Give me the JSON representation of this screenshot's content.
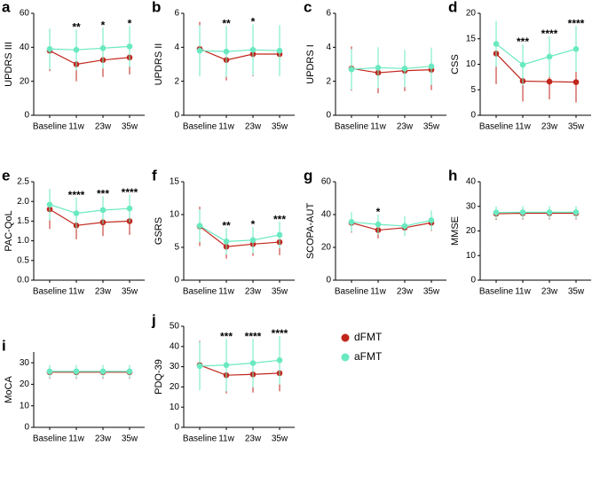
{
  "chart_data": [
    {
      "type": "line",
      "panel": "a",
      "ylabel": "UPDRS III",
      "categories": [
        "Baseline",
        "11w",
        "23w",
        "35w"
      ],
      "ylim": [
        0,
        60
      ],
      "yticks": [
        0,
        20,
        40,
        60
      ],
      "series": [
        {
          "color": "#c1261d",
          "values": [
            38,
            30,
            32.5,
            34
          ],
          "errors": [
            12,
            10,
            10,
            10
          ]
        },
        {
          "color": "#6ae9c1",
          "values": [
            39,
            38.5,
            39.5,
            40.5
          ],
          "errors": [
            12,
            12,
            12,
            12
          ]
        }
      ],
      "annotations": [
        null,
        "**",
        "*",
        "*"
      ]
    },
    {
      "type": "line",
      "panel": "b",
      "ylabel": "UPDRS II",
      "categories": [
        "Baseline",
        "11w",
        "23w",
        "35w"
      ],
      "ylim": [
        0,
        6
      ],
      "yticks": [
        0,
        2,
        4,
        6
      ],
      "series": [
        {
          "color": "#c1261d",
          "values": [
            3.9,
            3.25,
            3.6,
            3.6
          ],
          "errors": [
            1.6,
            1.2,
            1.3,
            1.3
          ]
        },
        {
          "color": "#6ae9c1",
          "values": [
            3.8,
            3.75,
            3.85,
            3.8
          ],
          "errors": [
            1.5,
            1.5,
            1.5,
            1.5
          ]
        }
      ],
      "annotations": [
        null,
        "**",
        "*",
        null
      ]
    },
    {
      "type": "line",
      "panel": "c",
      "ylabel": "UPDRS I",
      "categories": [
        "Baseline",
        "11w",
        "23w",
        "35w"
      ],
      "ylim": [
        0,
        6
      ],
      "yticks": [
        0,
        2,
        4,
        6
      ],
      "series": [
        {
          "color": "#c1261d",
          "values": [
            2.75,
            2.5,
            2.62,
            2.68
          ],
          "errors": [
            1.3,
            1.2,
            1.2,
            1.2
          ]
        },
        {
          "color": "#6ae9c1",
          "values": [
            2.7,
            2.8,
            2.75,
            2.88
          ],
          "errors": [
            1.2,
            1.2,
            1.1,
            1.1
          ]
        }
      ],
      "annotations": [
        null,
        null,
        null,
        null
      ]
    },
    {
      "type": "line",
      "panel": "d",
      "ylabel": "CSS",
      "categories": [
        "Baseline",
        "11w",
        "23w",
        "35w"
      ],
      "ylim": [
        0,
        20
      ],
      "yticks": [
        0,
        5,
        10,
        15,
        20
      ],
      "series": [
        {
          "color": "#c1261d",
          "values": [
            12.1,
            6.7,
            6.6,
            6.5
          ],
          "errors": [
            6,
            4,
            3.5,
            4
          ]
        },
        {
          "color": "#6ae9c1",
          "values": [
            14,
            9.9,
            11.5,
            13
          ],
          "errors": [
            4.5,
            4,
            4,
            4.5
          ]
        }
      ],
      "annotations": [
        null,
        "***",
        "****",
        "****"
      ]
    },
    {
      "type": "line",
      "panel": "e",
      "ylabel": "PAC-QoL",
      "categories": [
        "Baseline",
        "11w",
        "23w",
        "35w"
      ],
      "ylim": [
        0,
        2.5
      ],
      "yticks": [
        {
          "value": 0,
          "label": "0.0"
        },
        0.5,
        {
          "value": 1,
          "label": "1.0"
        },
        1.5,
        {
          "value": 2,
          "label": "2.0"
        },
        2.5
      ],
      "series": [
        {
          "color": "#c1261d",
          "values": [
            1.8,
            1.39,
            1.47,
            1.5
          ],
          "errors": [
            0.5,
            0.35,
            0.35,
            0.35
          ]
        },
        {
          "color": "#6ae9c1",
          "values": [
            1.92,
            1.7,
            1.78,
            1.82
          ],
          "errors": [
            0.4,
            0.4,
            0.35,
            0.35
          ]
        }
      ],
      "annotations": [
        null,
        "****",
        "***",
        "****"
      ]
    },
    {
      "type": "line",
      "panel": "f",
      "ylabel": "GSRS",
      "categories": [
        "Baseline",
        "11w",
        "23w",
        "35w"
      ],
      "ylim": [
        0,
        15
      ],
      "yticks": [
        0,
        5,
        10,
        15
      ],
      "series": [
        {
          "color": "#c1261d",
          "values": [
            8.2,
            5.1,
            5.5,
            5.8
          ],
          "errors": [
            3,
            1.8,
            1.8,
            2
          ]
        },
        {
          "color": "#6ae9c1",
          "values": [
            8.3,
            5.9,
            6.1,
            6.9
          ],
          "errors": [
            2.5,
            2,
            2,
            2
          ]
        }
      ],
      "annotations": [
        null,
        "**",
        "*",
        "***"
      ]
    },
    {
      "type": "line",
      "panel": "g",
      "ylabel": "SCOPA-AUT",
      "categories": [
        "Baseline",
        "11w",
        "23w",
        "35w"
      ],
      "ylim": [
        0,
        60
      ],
      "yticks": [
        0,
        20,
        40,
        60
      ],
      "series": [
        {
          "color": "#c1261d",
          "values": [
            35,
            30.5,
            32,
            35
          ],
          "errors": [
            6,
            5,
            5,
            5
          ]
        },
        {
          "color": "#6ae9c1",
          "values": [
            35.5,
            34,
            33,
            36.5
          ],
          "errors": [
            6,
            6,
            6,
            6
          ]
        }
      ],
      "annotations": [
        null,
        "*",
        null,
        null
      ]
    },
    {
      "type": "line",
      "panel": "h",
      "ylabel": "MMSE",
      "categories": [
        "Baseline",
        "11w",
        "23w",
        "35w"
      ],
      "ylim": [
        0,
        40
      ],
      "yticks": [
        0,
        10,
        20,
        30,
        40
      ],
      "series": [
        {
          "color": "#c1261d",
          "values": [
            27,
            27.2,
            27.2,
            27.2
          ],
          "errors": [
            2.5,
            2.5,
            2.5,
            2.5
          ]
        },
        {
          "color": "#6ae9c1",
          "values": [
            27.5,
            27.6,
            27.6,
            27.6
          ],
          "errors": [
            2.5,
            2.5,
            2.5,
            2.5
          ]
        }
      ],
      "annotations": [
        null,
        null,
        null,
        null
      ]
    },
    {
      "type": "line",
      "panel": "i",
      "ylabel": "MoCA",
      "categories": [
        "Baseline",
        "11w",
        "23w",
        "35w"
      ],
      "ylim": [
        0,
        35
      ],
      "yticks": [
        0,
        10,
        20,
        30
      ],
      "series": [
        {
          "color": "#c1261d",
          "values": [
            25.6,
            25.6,
            25.6,
            25.6
          ],
          "errors": [
            3,
            3,
            3,
            3
          ]
        },
        {
          "color": "#6ae9c1",
          "values": [
            26,
            26,
            26,
            26
          ],
          "errors": [
            3,
            3,
            3,
            3
          ]
        }
      ],
      "annotations": [
        null,
        null,
        null,
        null
      ]
    },
    {
      "type": "line",
      "panel": "j",
      "ylabel": "PDQ-39",
      "categories": [
        "Baseline",
        "11w",
        "23w",
        "35w"
      ],
      "ylim": [
        0,
        50
      ],
      "yticks": [
        0,
        10,
        20,
        30,
        40,
        50
      ],
      "series": [
        {
          "name": "dFMT",
          "color": "#c1261d",
          "values": [
            30.8,
            25.8,
            26.2,
            26.8
          ],
          "errors": [
            12,
            9,
            9,
            9
          ]
        },
        {
          "name": "aFMT",
          "color": "#6ae9c1",
          "values": [
            30.3,
            30.8,
            31.8,
            33.2
          ],
          "errors": [
            12,
            13,
            12,
            12
          ]
        }
      ],
      "annotations": [
        null,
        "***",
        "****",
        "****"
      ]
    }
  ]
}
